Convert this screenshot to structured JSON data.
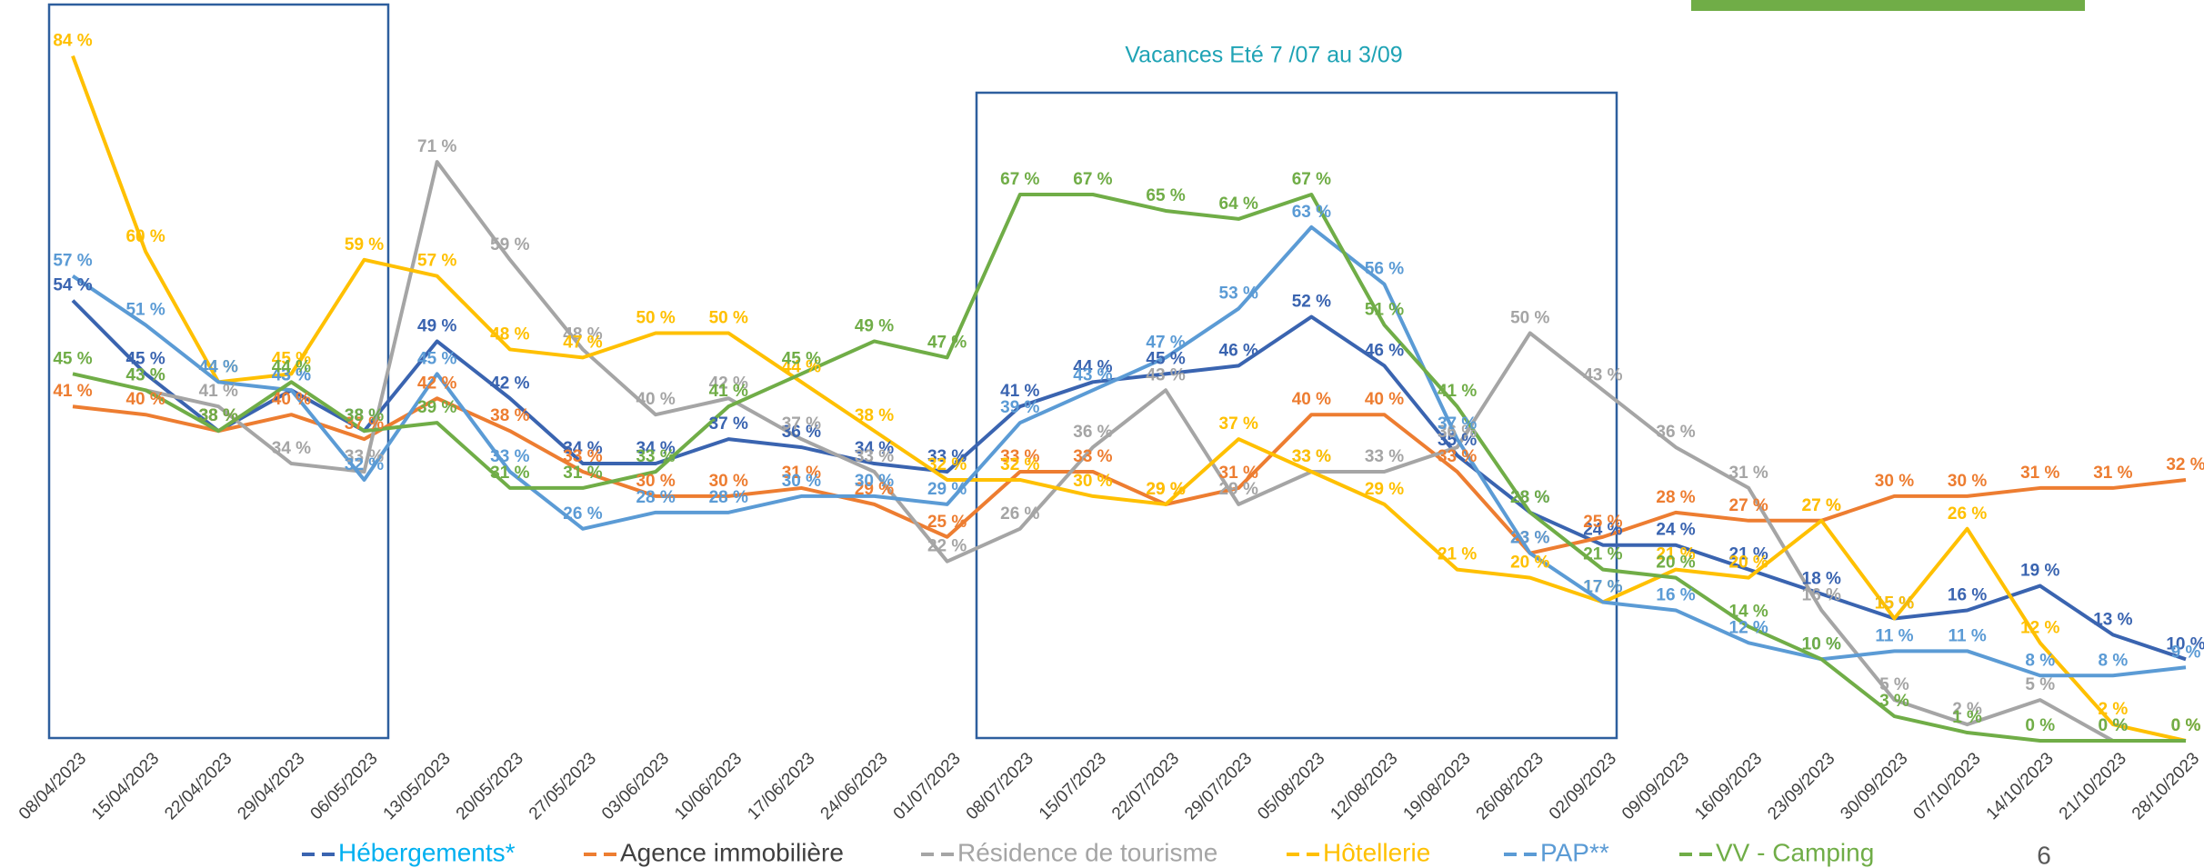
{
  "chart_data": {
    "type": "line",
    "annotation": "Vacances Eté  7 /07 au 3/09",
    "page_number": "6",
    "categories": [
      "08/04/2023",
      "15/04/2023",
      "22/04/2023",
      "29/04/2023",
      "06/05/2023",
      "13/05/2023",
      "20/05/2023",
      "27/05/2023",
      "03/06/2023",
      "10/06/2023",
      "17/06/2023",
      "24/06/2023",
      "01/07/2023",
      "08/07/2023",
      "15/07/2023",
      "22/07/2023",
      "29/07/2023",
      "05/08/2023",
      "12/08/2023",
      "19/08/2023",
      "26/08/2023",
      "02/09/2023",
      "09/09/2023",
      "16/09/2023",
      "23/09/2023",
      "30/09/2023",
      "07/10/2023",
      "14/10/2023",
      "21/10/2023",
      "28/10/2023"
    ],
    "series": [
      {
        "name": "Hébergements*",
        "color": "#3a64b0",
        "legend_color": "#00b0f0",
        "values": [
          54,
          45,
          38,
          43,
          38,
          49,
          42,
          34,
          34,
          37,
          36,
          34,
          33,
          41,
          44,
          45,
          46,
          52,
          46,
          35,
          28,
          24,
          24,
          21,
          18,
          15,
          16,
          19,
          13,
          10
        ],
        "value_labels": [
          "54 %",
          "45 %",
          "38 %",
          "43 %",
          "38 %",
          "49 %",
          "42 %",
          "34 %",
          "34 %",
          "37 %",
          "36 %",
          "34 %",
          "33 %",
          "41 %",
          "44 %",
          "45 %",
          "46 %",
          "52 %",
          "46 %",
          "35 %",
          "28 %",
          "24 %",
          "24 %",
          "21 %",
          "18 %",
          "15 %",
          "16 %",
          "19 %",
          "13 %",
          "10 %"
        ]
      },
      {
        "name": "Agence immobilière",
        "color": "#ed7d31",
        "legend_color": "#404040",
        "values": [
          41,
          40,
          38,
          40,
          37,
          42,
          38,
          33,
          30,
          30,
          31,
          29,
          25,
          33,
          33,
          29,
          31,
          40,
          40,
          33,
          23,
          25,
          28,
          27,
          27,
          30,
          30,
          31,
          31,
          32
        ],
        "value_labels": [
          "41 %",
          "40 %",
          "38 %",
          "40 %",
          "37 %",
          "42 %",
          "38 %",
          "33 %",
          "30 %",
          "30 %",
          "31 %",
          "29 %",
          "25 %",
          "33 %",
          "33 %",
          "29 %",
          "31 %",
          "40 %",
          "40 %",
          "33 %",
          "23 %",
          "25 %",
          "28 %",
          "27 %",
          "27 %",
          "30 %",
          "30 %",
          "31 %",
          "31 %",
          "32 %"
        ]
      },
      {
        "name": "Résidence de tourisme",
        "color": "#a5a5a5",
        "legend_color": "#a5a5a5",
        "values": [
          null,
          43,
          41,
          34,
          33,
          71,
          59,
          48,
          40,
          42,
          37,
          33,
          22,
          26,
          36,
          43,
          29,
          33,
          33,
          36,
          50,
          43,
          36,
          31,
          16,
          5,
          2,
          5,
          0,
          0
        ],
        "value_labels": [
          null,
          "43 %",
          "41 %",
          "34 %",
          "33 %",
          "71 %",
          "59 %",
          "48 %",
          "40 %",
          "42 %",
          "37 %",
          "33 %",
          "22 %",
          "26 %",
          "36 %",
          "43 %",
          "29 %",
          "33 %",
          "33 %",
          "36 %",
          "50 %",
          "43 %",
          "36 %",
          "31 %",
          "16 %",
          "5 %",
          "2 %",
          "5 %",
          "0 %",
          "0 %"
        ]
      },
      {
        "name": "Hôtellerie",
        "color": "#ffc000",
        "legend_color": "#ffc000",
        "values": [
          84,
          60,
          44,
          45,
          59,
          57,
          48,
          47,
          50,
          50,
          44,
          38,
          32,
          32,
          30,
          29,
          37,
          33,
          29,
          21,
          20,
          17,
          21,
          20,
          27,
          15,
          26,
          12,
          2,
          0
        ],
        "value_labels": [
          "84 %",
          "60 %",
          "44 %",
          "45 %",
          "59 %",
          "57 %",
          "48 %",
          "47 %",
          "50 %",
          "50 %",
          "44 %",
          "38 %",
          "32 %",
          "32 %",
          "30 %",
          "29 %",
          "37 %",
          "33 %",
          "29 %",
          "21 %",
          "20 %",
          "17 %",
          "21 %",
          "20 %",
          "27 %",
          "15 %",
          "26 %",
          "12 %",
          "2 %",
          "0 %"
        ]
      },
      {
        "name": "PAP**",
        "color": "#5b9bd5",
        "legend_color": "#5b9bd5",
        "values": [
          57,
          51,
          44,
          43,
          32,
          45,
          33,
          26,
          28,
          28,
          30,
          30,
          29,
          39,
          43,
          47,
          53,
          63,
          56,
          37,
          23,
          17,
          16,
          12,
          10,
          11,
          11,
          8,
          8,
          9
        ],
        "value_labels": [
          "57 %",
          "51 %",
          "44 %",
          "43 %",
          "32 %",
          "45 %",
          "33 %",
          "26 %",
          "28 %",
          "28 %",
          "30 %",
          "30 %",
          "29 %",
          "39 %",
          "43 %",
          "47 %",
          "53 %",
          "63 %",
          "56 %",
          "37 %",
          "23 %",
          "17 %",
          "16 %",
          "12 %",
          "10 %",
          "11 %",
          "11 %",
          "8 %",
          "8 %",
          "9 %"
        ]
      },
      {
        "name": "VV - Camping",
        "color": "#70ad47",
        "legend_color": "#70ad47",
        "values": [
          45,
          43,
          38,
          44,
          38,
          39,
          31,
          31,
          33,
          41,
          45,
          49,
          47,
          67,
          67,
          65,
          64,
          67,
          51,
          41,
          28,
          21,
          20,
          14,
          10,
          3,
          1,
          0,
          0,
          0
        ],
        "value_labels": [
          "45 %",
          "43 %",
          "38 %",
          "44 %",
          "38 %",
          "39 %",
          "31 %",
          "31 %",
          "33 %",
          "41 %",
          "45 %",
          "49 %",
          "47 %",
          "67 %",
          "67 %",
          "65 %",
          "64 %",
          "67 %",
          "51 %",
          "41 %",
          "28 %",
          "21 %",
          "20 %",
          "14 %",
          "10 %",
          "3 %",
          "1 %",
          "0 %",
          "0 %",
          "0 %"
        ]
      }
    ]
  }
}
